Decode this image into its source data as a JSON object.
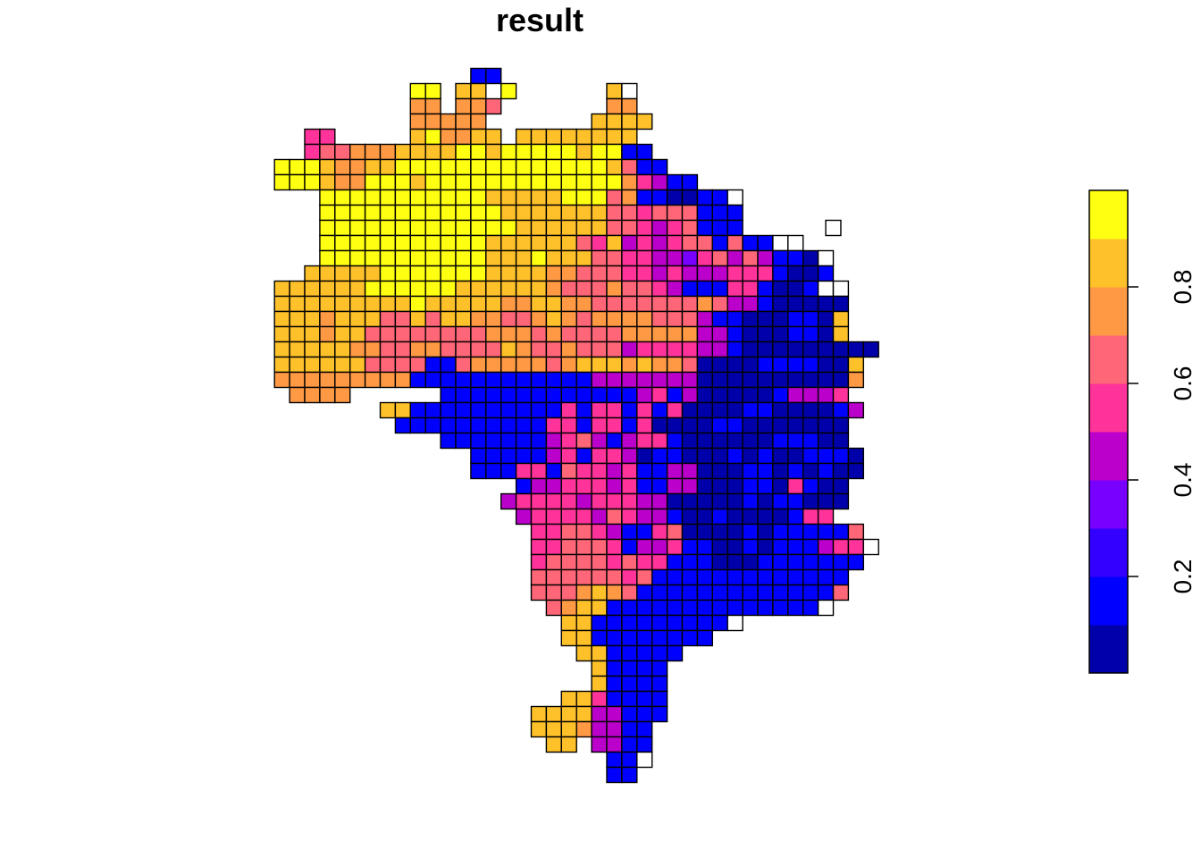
{
  "title": "result",
  "legend": {
    "tick_labels": [
      "0.2",
      "0.4",
      "0.6",
      "0.8"
    ],
    "tick_values": [
      0.2,
      0.4,
      0.6,
      0.8
    ],
    "breaks": [
      0.0,
      0.1,
      0.2,
      0.3,
      0.4,
      0.5,
      0.6,
      0.7,
      0.8,
      0.9,
      1.0
    ],
    "palette": [
      "#0000AA",
      "#0000FF",
      "#3300FF",
      "#7700FF",
      "#BB00CC",
      "#FF3399",
      "#FF6677",
      "#FF9944",
      "#FFC12A",
      "#FFFF11"
    ]
  },
  "na_color": "#FFFFFF",
  "map_data": {
    "grid_cols": 41,
    "grid_rows": 49,
    "rows": [
      "...........................................",
      ".........................................",
      "................@@.......................",
      "............99.88.9......8N..............",
      "............77.776.......77..............",
      "............77777.......8888.............",
      ".....55.....897788.88888888..............",
      ".....566777888899899999899@@.............",
      "...999877889999999999999986@@............",
      "...99987799989999999999999754@@..........",
      "......999999999998888899967@@##@@N.......",
      "......9999999999998888888665666@@@.......",
      "......9999999999999888888665456@@@.......",
      "......99999999999888888658454566@6@@NN...",
      "......999999999998889888665544356464@@#N.",
      ".....8888899999998888776665545444555@##@.",
      "...888888999999888888766676654@@@55@##@NN",
      "...88888888898888877887766666667644@#####",
      "...88878886686887766787677776664@@###@@#8",
      "...888788666666667776766667777744@###@@#8",
      "...888887766776666876676664555544@#########",
      "...8888886666@@6777776788878776####@@@@##8",
      "...777777777@@@@@@@@@@@@4444444##########7.",
      "....7777......@@@@@@@@@@@@@45@4#####@4445..",
      "..........88@@@@@@@@@@5@55@5@5####@@####@4",
      "...........@@@@@@@@@@55@55@5####@@#######",
      "..............@@@@@@@4564@455@######@@@##",
      "................@@@@@45@554#@@###@#@##@@@#.",
      "................@@@55@65545@@44###@@#@#@##",
      "...................@4455545@@44###@@#5@##.",
      "..................45555455544#####@#@@###",
      "...................4555546544@##@####@55..",
      "....................556654@@56####@#@@@@@6.",
      "....................556665@445@@##@#@@@455N",
      "....................566665655@@@###@@@@@@@.",
      "....................66666656@@@@@@@@@@@@@..",
      "....................6667876@@@@@@@@@@@@@6..",
      ".....................6788@@@@@@@@@@@@@@N...",
      "......................88@@@@@@@@@N.........",
      "......................88@@@@@@@@...........",
      ".......................88@@@@@.............",
      "........................8@@@@..............",
      "........................8@@@@..............",
      "......................885@@@@..............",
      "....................888844@@@..............",
      "....................888744@@...............",
      ".....................88.44@@...............",
      ".........................@@N...............",
      ".........................@@................"
    ],
    "extra_cells": [
      [
        39.5,
        12
      ]
    ]
  },
  "colors": {
    "border": "#000000",
    "text": "#000000",
    "background": "#FFFFFF"
  }
}
